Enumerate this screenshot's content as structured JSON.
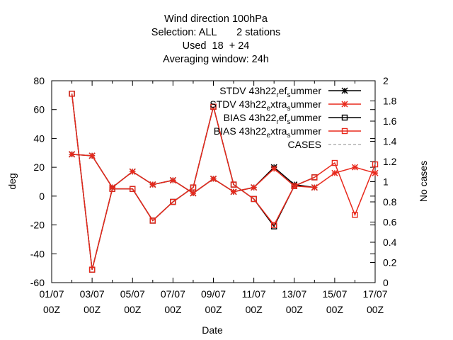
{
  "chart_data": {
    "type": "line",
    "title_lines": [
      "Wind direction 100hPa",
      "Selection: ALL       2 stations",
      "Used  18  + 24",
      "Averaging window: 24h"
    ],
    "xlabel": "Date",
    "ylabel": "deg",
    "y2label": "No cases",
    "ylim": [
      -60,
      80
    ],
    "y2lim": [
      0,
      2
    ],
    "xlim": [
      0,
      16
    ],
    "x_ticks": [
      {
        "x": 0,
        "l1": "01/07",
        "l2": "00Z"
      },
      {
        "x": 2,
        "l1": "03/07",
        "l2": "00Z"
      },
      {
        "x": 4,
        "l1": "05/07",
        "l2": "00Z"
      },
      {
        "x": 6,
        "l1": "07/07",
        "l2": "00Z"
      },
      {
        "x": 8,
        "l1": "09/07",
        "l2": "00Z"
      },
      {
        "x": 10,
        "l1": "11/07",
        "l2": "00Z"
      },
      {
        "x": 12,
        "l1": "13/07",
        "l2": "00Z"
      },
      {
        "x": 14,
        "l1": "15/07",
        "l2": "00Z"
      },
      {
        "x": 16,
        "l1": "17/07",
        "l2": "00Z"
      }
    ],
    "y_ticks": [
      -60,
      -40,
      -20,
      0,
      20,
      40,
      60,
      80
    ],
    "y2_ticks": [
      "0",
      "0.2",
      "0.4",
      "0.6",
      "0.8",
      "1",
      "1.2",
      "1.4",
      "1.6",
      "1.8",
      "2"
    ],
    "series": [
      {
        "name": "STDV 43h22",
        "sub1": "r",
        "mid": "ef",
        "sub2": "s",
        "tail": "ummer",
        "color": "#000000",
        "marker": "star",
        "x": [
          1,
          2,
          3,
          4,
          5,
          6,
          7,
          8,
          9,
          10,
          11,
          12,
          13
        ],
        "y": [
          29,
          28,
          6,
          17,
          8,
          11,
          2,
          12,
          3,
          6,
          20,
          8,
          6
        ]
      },
      {
        "name": "STDV 43h22",
        "sub1": "e",
        "mid": "xtra",
        "sub2": "s",
        "tail": "ummer",
        "color": "#e8291c",
        "marker": "star",
        "x": [
          1,
          2,
          3,
          4,
          5,
          6,
          7,
          8,
          9,
          10,
          11,
          12,
          13,
          14,
          15,
          16
        ],
        "y": [
          29,
          28,
          6,
          17,
          8,
          11,
          2,
          12,
          3,
          6,
          19,
          7,
          6,
          16,
          20,
          16
        ]
      },
      {
        "name": "BIAS 43h22",
        "sub1": "r",
        "mid": "ef",
        "sub2": "s",
        "tail": "ummer",
        "color": "#000000",
        "marker": "square",
        "x": [
          1,
          2,
          3,
          4,
          5,
          6,
          7,
          8,
          9,
          10,
          11,
          12,
          13
        ],
        "y": [
          71,
          -51,
          5,
          5,
          -17,
          -4,
          6,
          62,
          8,
          -2,
          -21,
          7,
          13
        ]
      },
      {
        "name": "BIAS 43h22",
        "sub1": "e",
        "mid": "xtra",
        "sub2": "s",
        "tail": "ummer",
        "color": "#e8291c",
        "marker": "square",
        "x": [
          1,
          2,
          3,
          4,
          5,
          6,
          7,
          8,
          9,
          10,
          11,
          12,
          13,
          14,
          15,
          16
        ],
        "y": [
          71,
          -51,
          5,
          5,
          -17,
          -4,
          6,
          62,
          8,
          -2,
          -20,
          7,
          13,
          23,
          -13,
          22
        ]
      },
      {
        "name": "CASES",
        "color": "#888888",
        "marker": "none",
        "dashed": true,
        "x": [],
        "y": []
      }
    ],
    "legend_position": "top-right",
    "grid": false
  }
}
